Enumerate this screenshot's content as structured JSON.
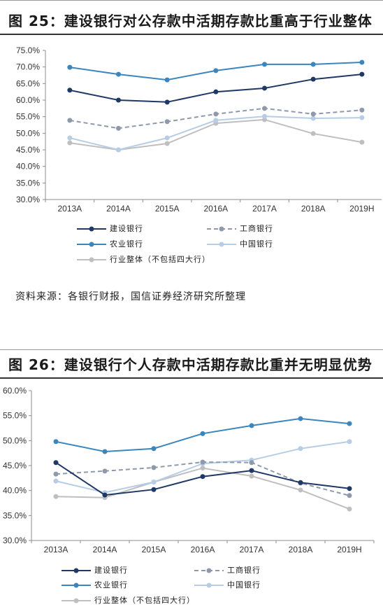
{
  "source_note": "资料来源：各银行财报，国信证券经济研究所整理",
  "chart_data": [
    {
      "type": "line",
      "title": "图 25：建设银行对公存款中活期存款比重高于行业整体",
      "categories": [
        "2013A",
        "2014A",
        "2015A",
        "2016A",
        "2017A",
        "2018A",
        "2019H"
      ],
      "ylim": [
        30,
        75
      ],
      "yticks": [
        "30.0%",
        "35.0%",
        "40.0%",
        "45.0%",
        "50.0%",
        "55.0%",
        "60.0%",
        "65.0%",
        "70.0%",
        "75.0%"
      ],
      "grid": false,
      "legend": "bottom",
      "series": [
        {
          "name": "建设银行",
          "color": "#1F3864",
          "line_style": "solid",
          "values": [
            63.0,
            60.0,
            59.4,
            62.5,
            63.6,
            66.3,
            67.8
          ]
        },
        {
          "name": "工商银行",
          "color": "#8E9AAB",
          "line_style": "dashed",
          "values": [
            53.9,
            51.5,
            53.5,
            55.8,
            57.5,
            55.8,
            57.0
          ]
        },
        {
          "name": "农业银行",
          "color": "#3A86BD",
          "line_style": "solid",
          "values": [
            69.9,
            67.8,
            66.1,
            68.9,
            70.8,
            70.8,
            71.4
          ]
        },
        {
          "name": "中国银行",
          "color": "#B7CDE6",
          "line_style": "solid",
          "values": [
            48.6,
            45.0,
            48.6,
            53.9,
            55.1,
            54.5,
            54.7
          ]
        },
        {
          "name": "行业整体（不包括四大行）",
          "color": "#BFBFBF",
          "line_style": "solid",
          "values": [
            47.1,
            45.0,
            46.9,
            53.0,
            54.1,
            49.9,
            47.3
          ]
        }
      ]
    },
    {
      "type": "line",
      "title": "图 26：建设银行个人存款中活期存款比重并无明显优势",
      "categories": [
        "2013A",
        "2014A",
        "2015A",
        "2016A",
        "2017A",
        "2018A",
        "2019H"
      ],
      "ylim": [
        30,
        60
      ],
      "yticks": [
        "30.0%",
        "35.0%",
        "40.0%",
        "45.0%",
        "50.0%",
        "55.0%",
        "60.0%"
      ],
      "grid": false,
      "legend": "bottom",
      "series": [
        {
          "name": "建设银行",
          "color": "#1F3864",
          "line_style": "solid",
          "values": [
            45.6,
            39.1,
            40.2,
            42.8,
            44.0,
            41.6,
            40.4
          ]
        },
        {
          "name": "工商银行",
          "color": "#8E9AAB",
          "line_style": "dashed",
          "values": [
            43.3,
            43.9,
            44.6,
            45.7,
            45.6,
            41.5,
            39.0
          ]
        },
        {
          "name": "农业银行",
          "color": "#3A86BD",
          "line_style": "solid",
          "values": [
            49.8,
            47.8,
            48.4,
            51.4,
            53.0,
            54.4,
            53.4
          ]
        },
        {
          "name": "中国银行",
          "color": "#B7CDE6",
          "line_style": "solid",
          "values": [
            41.9,
            39.6,
            41.7,
            45.4,
            46.1,
            48.4,
            49.8
          ]
        },
        {
          "name": "行业整体（不包括四大行）",
          "color": "#BFBFBF",
          "line_style": "solid",
          "values": [
            38.8,
            38.6,
            41.7,
            44.5,
            42.9,
            40.1,
            36.3
          ]
        }
      ]
    }
  ]
}
